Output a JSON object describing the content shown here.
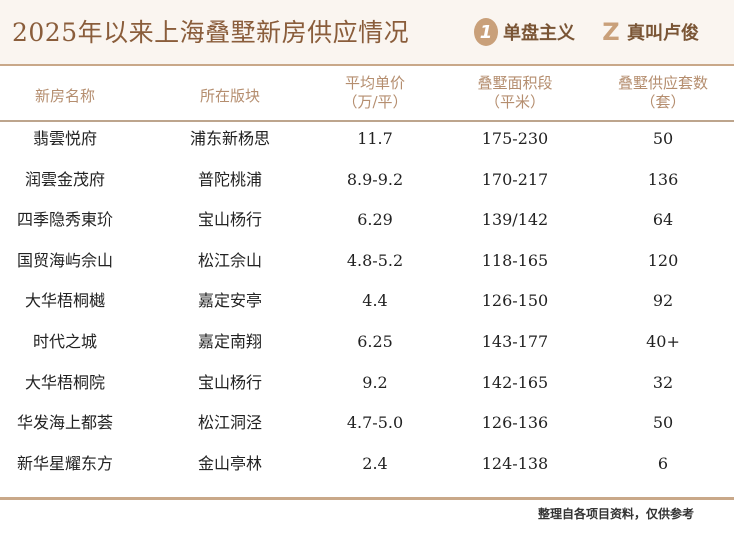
{
  "title": "2025年以来上海叠墅新房供应情况",
  "brands": {
    "brand1_logo": "1",
    "brand1_name": "单盘主义",
    "brand2_logo": "Z",
    "brand2_name": "真叫卢俊"
  },
  "columns": [
    {
      "line1": "新房名称",
      "line2": ""
    },
    {
      "line1": "所在版块",
      "line2": ""
    },
    {
      "line1": "平均单价",
      "line2": "（万/平）"
    },
    {
      "line1": "叠墅面积段",
      "line2": "（平米）"
    },
    {
      "line1": "叠墅供应套数",
      "line2": "（套）"
    }
  ],
  "rows": [
    [
      "翡雲悦府",
      "浦东新杨思",
      "11.7",
      "175-230",
      "50"
    ],
    [
      "润雲金茂府",
      "普陀桃浦",
      "8.9-9.2",
      "170-217",
      "136"
    ],
    [
      "四季隐秀東玠",
      "宝山杨行",
      "6.29",
      "139/142",
      "64"
    ],
    [
      "国贸海屿佘山",
      "松江佘山",
      "4.8-5.2",
      "118-165",
      "120"
    ],
    [
      "大华梧桐樾",
      "嘉定安亭",
      "4.4",
      "126-150",
      "92"
    ],
    [
      "时代之城",
      "嘉定南翔",
      "6.25",
      "143-177",
      "40+"
    ],
    [
      "大华梧桐院",
      "宝山杨行",
      "9.2",
      "142-165",
      "32"
    ],
    [
      "华发海上都荟",
      "松江洞泾",
      "4.7-5.0",
      "126-136",
      "50"
    ],
    [
      "新华星耀东方",
      "金山亭林",
      "2.4",
      "124-138",
      "6"
    ]
  ],
  "footer_note": "整理自各项目资料，仅供参考",
  "colors": {
    "title": "#8a5d3b",
    "header_text": "#b58e6f",
    "rule": "#c9a889",
    "header_bg": "#faf5f0"
  }
}
